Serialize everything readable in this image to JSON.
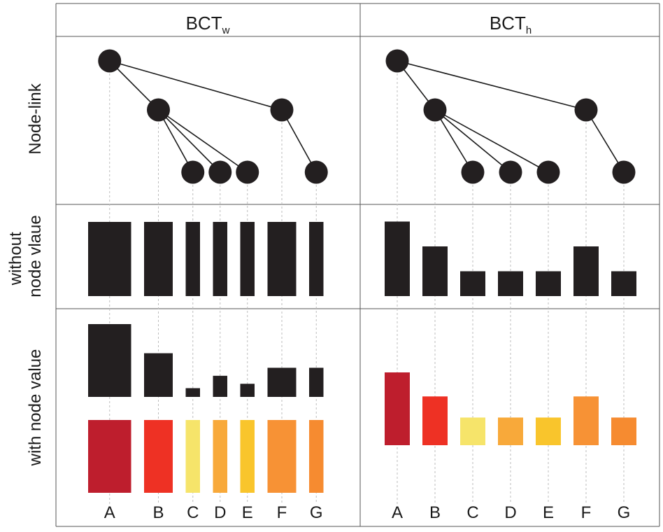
{
  "columns": {
    "left": {
      "base": "BCT",
      "sub": "w"
    },
    "right": {
      "base": "BCT",
      "sub": "h"
    }
  },
  "rows": {
    "node_link": "Node-link",
    "without_value": [
      "without",
      "node vlaue"
    ],
    "with_value": "with node value"
  },
  "nodes": [
    "A",
    "B",
    "C",
    "D",
    "E",
    "F",
    "G"
  ],
  "tree": {
    "root": "A",
    "children": {
      "A": [
        "B",
        "F"
      ],
      "B": [
        "C",
        "D",
        "E"
      ],
      "F": [
        "G"
      ]
    }
  },
  "bct_w": {
    "structure_widths": {
      "A": 3,
      "B": 2,
      "C": 1,
      "D": 1,
      "E": 1,
      "F": 2,
      "G": 1
    },
    "value_heights": {
      "A": 1.0,
      "B": 0.6,
      "C": 0.12,
      "D": 0.29,
      "E": 0.18,
      "F": 0.4,
      "G": 0.4
    }
  },
  "bct_h": {
    "structure_heights": {
      "A": 3,
      "B": 2,
      "C": 1,
      "D": 1,
      "E": 1,
      "F": 2,
      "G": 1
    },
    "value_heights": {
      "A": 1.0,
      "B": 0.67,
      "C": 0.38,
      "D": 0.38,
      "E": 0.38,
      "F": 0.67,
      "G": 0.38
    }
  },
  "colors": {
    "A": "#be1e2d",
    "B": "#ee3124",
    "C": "#f6e46a",
    "D": "#f8a93a",
    "E": "#f9c52c",
    "F": "#f79235",
    "G": "#f68b30",
    "dark": "#231f20",
    "grid": "#555555",
    "guide": "#bdbdbd"
  }
}
